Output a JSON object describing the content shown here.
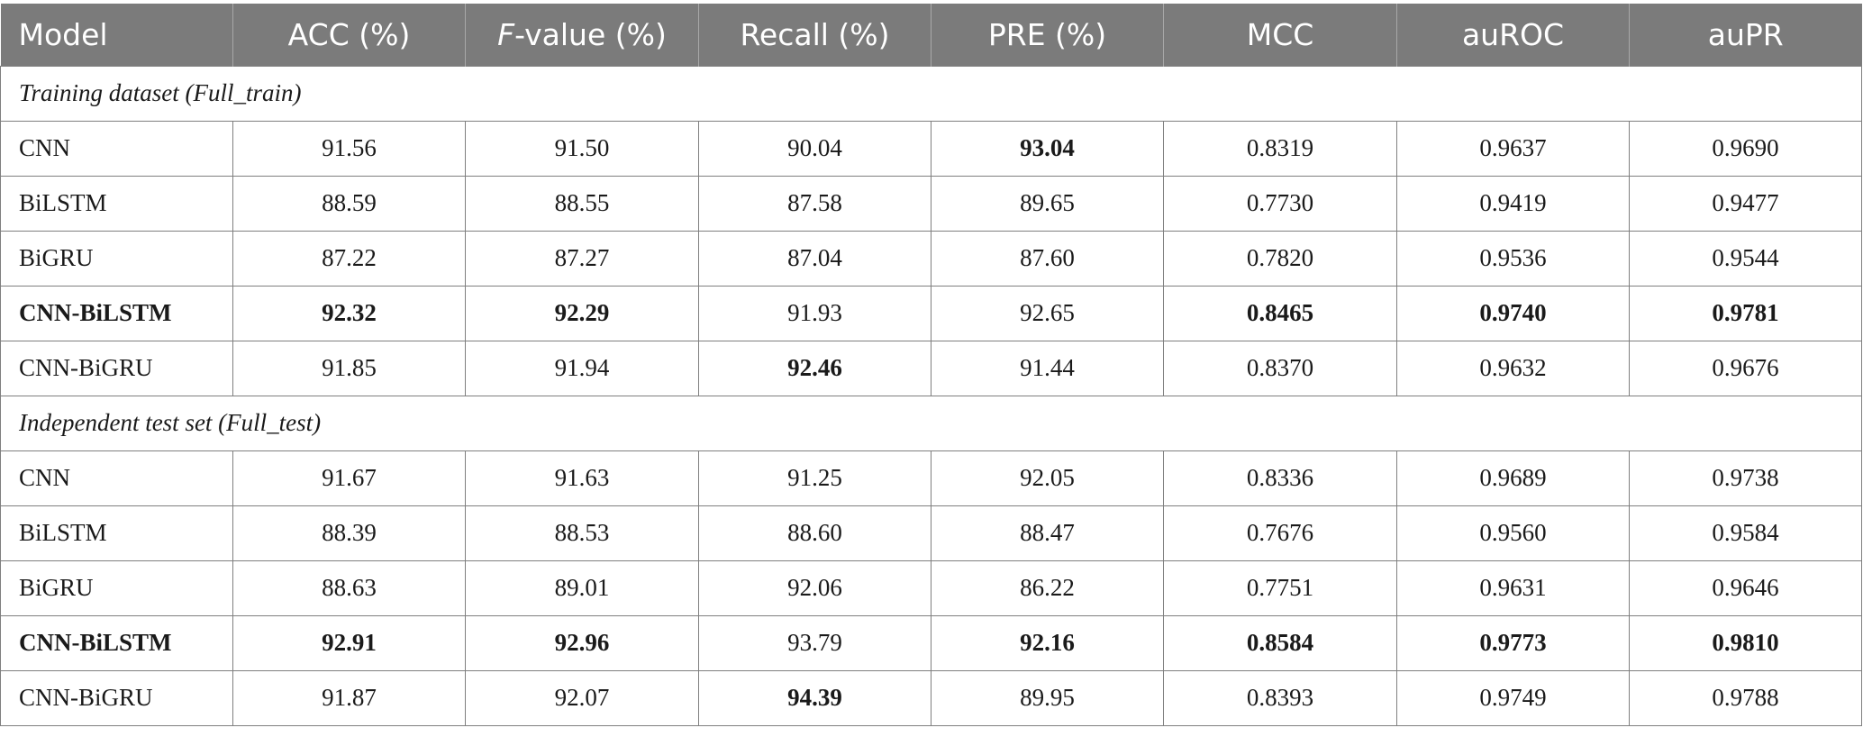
{
  "columns": {
    "model": "Model",
    "acc": "ACC (%)",
    "fvalue_f": "F",
    "fvalue_rest": "-value (%)",
    "recall": "Recall (%)",
    "pre": "PRE (%)",
    "mcc": "MCC",
    "auroc": "auROC",
    "aupr": "auPR"
  },
  "sections": [
    {
      "title": "Training dataset (Full_train)",
      "rows": [
        {
          "model": "CNN",
          "acc": "91.56",
          "fvalue": "91.50",
          "recall": "90.04",
          "pre": "93.04",
          "mcc": "0.8319",
          "auroc": "0.9637",
          "aupr": "0.9690"
        },
        {
          "model": "BiLSTM",
          "acc": "88.59",
          "fvalue": "88.55",
          "recall": "87.58",
          "pre": "89.65",
          "mcc": "0.7730",
          "auroc": "0.9419",
          "aupr": "0.9477"
        },
        {
          "model": "BiGRU",
          "acc": "87.22",
          "fvalue": "87.27",
          "recall": "87.04",
          "pre": "87.60",
          "mcc": "0.7820",
          "auroc": "0.9536",
          "aupr": "0.9544"
        },
        {
          "model": "CNN-BiLSTM",
          "acc": "92.32",
          "fvalue": "92.29",
          "recall": "91.93",
          "pre": "92.65",
          "mcc": "0.8465",
          "auroc": "0.9740",
          "aupr": "0.9781"
        },
        {
          "model": "CNN-BiGRU",
          "acc": "91.85",
          "fvalue": "91.94",
          "recall": "92.46",
          "pre": "91.44",
          "mcc": "0.8370",
          "auroc": "0.9632",
          "aupr": "0.9676"
        }
      ]
    },
    {
      "title": "Independent test set (Full_test)",
      "rows": [
        {
          "model": "CNN",
          "acc": "91.67",
          "fvalue": "91.63",
          "recall": "91.25",
          "pre": "92.05",
          "mcc": "0.8336",
          "auroc": "0.9689",
          "aupr": "0.9738"
        },
        {
          "model": "BiLSTM",
          "acc": "88.39",
          "fvalue": "88.53",
          "recall": "88.60",
          "pre": "88.47",
          "mcc": "0.7676",
          "auroc": "0.9560",
          "aupr": "0.9584"
        },
        {
          "model": "BiGRU",
          "acc": "88.63",
          "fvalue": "89.01",
          "recall": "92.06",
          "pre": "86.22",
          "mcc": "0.7751",
          "auroc": "0.9631",
          "aupr": "0.9646"
        },
        {
          "model": "CNN-BiLSTM",
          "acc": "92.91",
          "fvalue": "92.96",
          "recall": "93.79",
          "pre": "92.16",
          "mcc": "0.8584",
          "auroc": "0.9773",
          "aupr": "0.9810"
        },
        {
          "model": "CNN-BiGRU",
          "acc": "91.87",
          "fvalue": "92.07",
          "recall": "94.39",
          "pre": "89.95",
          "mcc": "0.8393",
          "auroc": "0.9749",
          "aupr": "0.9788"
        }
      ]
    }
  ]
}
